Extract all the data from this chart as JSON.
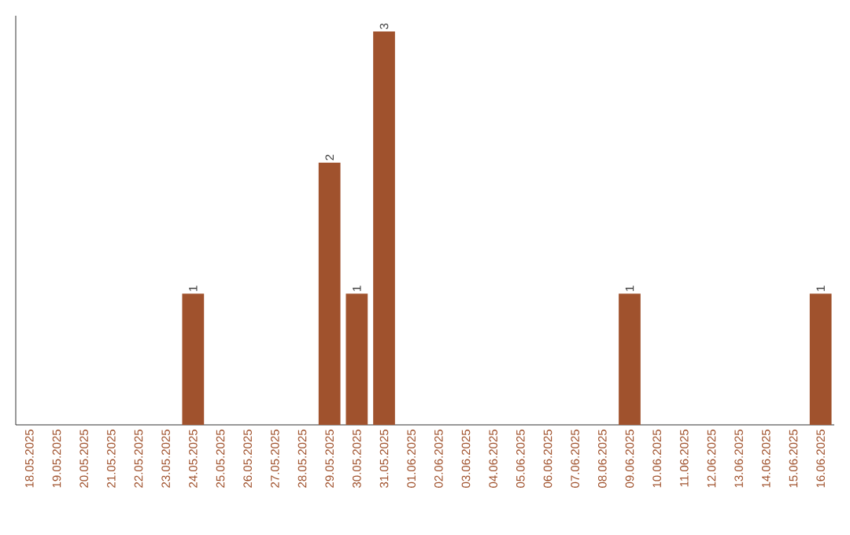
{
  "chart_data": {
    "type": "bar",
    "categories": [
      "18.05.2025",
      "19.05.2025",
      "20.05.2025",
      "21.05.2025",
      "22.05.2025",
      "23.05.2025",
      "24.05.2025",
      "25.05.2025",
      "26.05.2025",
      "27.05.2025",
      "28.05.2025",
      "29.05.2025",
      "30.05.2025",
      "31.05.2025",
      "01.06.2025",
      "02.06.2025",
      "03.06.2025",
      "04.06.2025",
      "05.06.2025",
      "06.06.2025",
      "07.06.2025",
      "08.06.2025",
      "09.06.2025",
      "10.06.2025",
      "11.06.2025",
      "12.06.2025",
      "13.06.2025",
      "14.06.2025",
      "15.06.2025",
      "16.06.2025"
    ],
    "values": [
      0,
      0,
      0,
      0,
      0,
      0,
      1,
      0,
      0,
      0,
      0,
      2,
      1,
      3,
      0,
      0,
      0,
      0,
      0,
      0,
      0,
      0,
      1,
      0,
      0,
      0,
      0,
      0,
      0,
      1
    ],
    "value_labels": [
      null,
      null,
      null,
      null,
      null,
      null,
      "1",
      null,
      null,
      null,
      null,
      "2",
      "1",
      "3",
      null,
      null,
      null,
      null,
      null,
      null,
      null,
      null,
      "1",
      null,
      null,
      null,
      null,
      null,
      null,
      "1"
    ],
    "color": "#a0522d"
  }
}
